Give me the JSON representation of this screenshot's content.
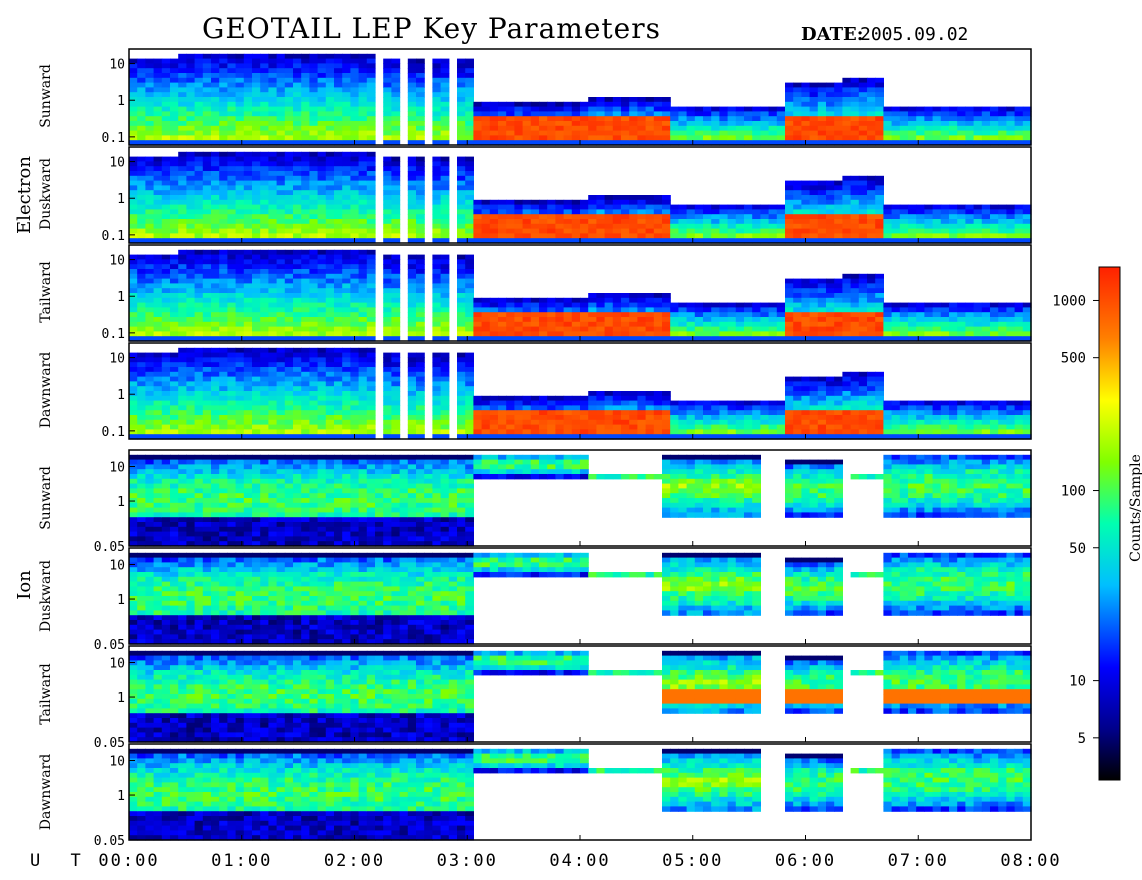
{
  "title": "GEOTAIL LEP Key Parameters",
  "date_label": "DATE:",
  "date_value": "2005.09.02",
  "ut_label": "U T",
  "chart_data": {
    "type": "heatmap",
    "title": "GEOTAIL LEP Key Parameters",
    "date": "2005.09.02",
    "x_ticks": [
      "00:00",
      "01:00",
      "02:00",
      "03:00",
      "04:00",
      "05:00",
      "06:00",
      "07:00",
      "08:00"
    ],
    "x_range_hours": [
      0,
      8
    ],
    "groups": [
      {
        "name": "Electron",
        "panels": [
          {
            "name": "Sunward",
            "y_ticks": [
              "10",
              "1",
              "0.1"
            ]
          },
          {
            "name": "Duskward",
            "y_ticks": [
              "10",
              "1",
              "0.1"
            ]
          },
          {
            "name": "Tailward",
            "y_ticks": [
              "10",
              "1",
              "0.1"
            ]
          },
          {
            "name": "Dawnward",
            "y_ticks": [
              "10",
              "1",
              "0.1"
            ]
          }
        ]
      },
      {
        "name": "Ion",
        "panels": [
          {
            "name": "Sunward",
            "y_ticks": [
              "10",
              "1",
              "0.05"
            ]
          },
          {
            "name": "Duskward",
            "y_ticks": [
              "10",
              "1",
              "0.05"
            ]
          },
          {
            "name": "Tailward",
            "y_ticks": [
              "10",
              "1",
              "0.05"
            ]
          },
          {
            "name": "Dawnward",
            "y_ticks": [
              "10",
              "1",
              "0.05"
            ]
          }
        ]
      }
    ],
    "colorbar": {
      "label": "Counts/Sample",
      "scale": "log",
      "range": [
        3,
        1500
      ],
      "ticks": [
        "1000",
        "500",
        "100",
        "50",
        "10",
        "5"
      ],
      "colors": [
        "#000000",
        "#0000ff",
        "#00bfff",
        "#00ffb0",
        "#80ff00",
        "#ffff00",
        "#ff8000",
        "#ff2000"
      ]
    },
    "electron_segments": [
      {
        "t0": 0.0,
        "t1": 0.45,
        "band": "wide",
        "cap": 15,
        "core": "green"
      },
      {
        "t0": 0.45,
        "t1": 2.15,
        "band": "wide",
        "cap": 18,
        "core": "green"
      },
      {
        "t0": 2.15,
        "t1": 3.05,
        "band": "gappy",
        "cap": 12,
        "core": "green"
      },
      {
        "t0": 3.05,
        "t1": 4.1,
        "band": "low",
        "cap": 0.8,
        "core": "red"
      },
      {
        "t0": 4.1,
        "t1": 4.8,
        "band": "low",
        "cap": 1.1,
        "core": "red"
      },
      {
        "t0": 4.8,
        "t1": 5.85,
        "band": "low",
        "cap": 0.7,
        "core": "green"
      },
      {
        "t0": 5.85,
        "t1": 6.35,
        "band": "low",
        "cap": 3.0,
        "core": "red"
      },
      {
        "t0": 6.35,
        "t1": 6.7,
        "band": "low",
        "cap": 4.0,
        "core": "red"
      },
      {
        "t0": 6.7,
        "t1": 8.0,
        "band": "low",
        "cap": 0.7,
        "core": "green"
      }
    ],
    "ion_segments": [
      {
        "t0": 0.0,
        "t1": 0.45,
        "lo": 0.05,
        "hi": 20,
        "core": "dark"
      },
      {
        "t0": 0.45,
        "t1": 3.05,
        "lo": 0.05,
        "hi": 25,
        "core": "dark"
      },
      {
        "t0": 3.05,
        "t1": 4.1,
        "lo": 5,
        "hi": 25,
        "core": "blue"
      },
      {
        "t0": 4.1,
        "t1": 4.75,
        "lo": 4,
        "hi": 6,
        "core": "blue"
      },
      {
        "t0": 4.75,
        "t1": 5.6,
        "lo": 0.3,
        "hi": 20,
        "core": "green"
      },
      {
        "t0": 5.85,
        "t1": 6.35,
        "lo": 0.3,
        "hi": 15,
        "core": "blue"
      },
      {
        "t0": 6.4,
        "t1": 6.7,
        "lo": 4,
        "hi": 6,
        "core": "blue"
      },
      {
        "t0": 6.7,
        "t1": 8.0,
        "lo": 0.3,
        "hi": 25,
        "core": "blue"
      }
    ]
  }
}
